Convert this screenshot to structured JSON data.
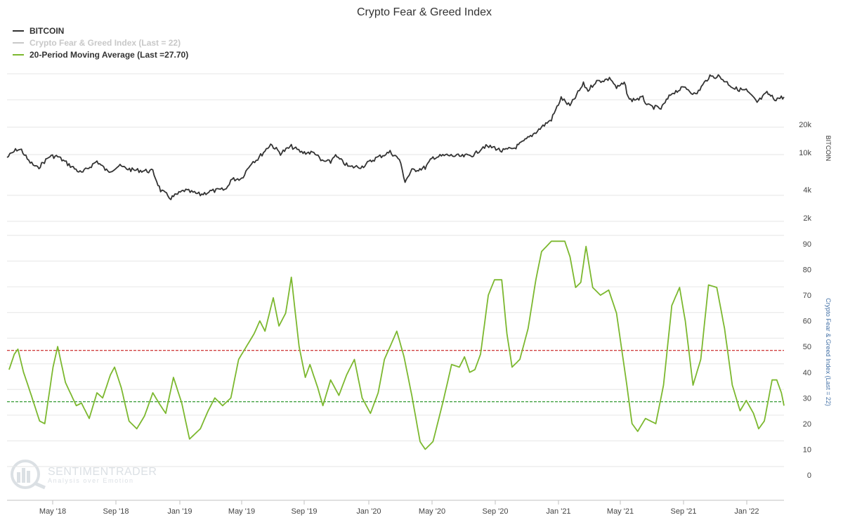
{
  "chart_data": {
    "type": "line",
    "title": "Crypto Fear & Greed Index",
    "legend": [
      {
        "label": "BITCOIN",
        "color": "#333333"
      },
      {
        "label": "Crypto Fear & Greed Index (Last = 22)",
        "color": "#c8c8c8"
      },
      {
        "label": "20-Period Moving Average (Last =27.70)",
        "color": "#7cb82f"
      }
    ],
    "x_ticks": [
      "May '18",
      "Sep '18",
      "Jan '19",
      "May '19",
      "Sep '19",
      "Jan '20",
      "May '20",
      "Sep '20",
      "Jan '21",
      "May '21",
      "Sep '21",
      "Jan '22"
    ],
    "x_range": [
      "2018-02-01",
      "2022-03-15"
    ],
    "upper_panel": {
      "axis_title": "BITCOIN",
      "scale": "log",
      "y_ticks": [
        {
          "label": "2k",
          "value": 2000
        },
        {
          "label": "4k",
          "value": 4000
        },
        {
          "label": "10k",
          "value": 10000
        },
        {
          "label": "20k",
          "value": 20000
        }
      ],
      "series": [
        {
          "name": "BITCOIN",
          "points": [
            [
              "2018-02-01",
              9000
            ],
            [
              "2018-02-20",
              11000
            ],
            [
              "2018-03-01",
              10800
            ],
            [
              "2018-03-15",
              8200
            ],
            [
              "2018-04-01",
              6900
            ],
            [
              "2018-04-25",
              9300
            ],
            [
              "2018-05-10",
              9200
            ],
            [
              "2018-06-01",
              7500
            ],
            [
              "2018-06-25",
              6100
            ],
            [
              "2018-07-25",
              8200
            ],
            [
              "2018-08-15",
              6300
            ],
            [
              "2018-09-05",
              7300
            ],
            [
              "2018-10-01",
              6600
            ],
            [
              "2018-11-10",
              6400
            ],
            [
              "2018-11-25",
              4000
            ],
            [
              "2018-12-15",
              3300
            ],
            [
              "2019-01-10",
              4000
            ],
            [
              "2019-02-10",
              3600
            ],
            [
              "2019-03-01",
              3900
            ],
            [
              "2019-04-01",
              4100
            ],
            [
              "2019-04-10",
              5200
            ],
            [
              "2019-05-01",
              5400
            ],
            [
              "2019-05-20",
              8000
            ],
            [
              "2019-06-01",
              8700
            ],
            [
              "2019-06-26",
              12500
            ],
            [
              "2019-07-15",
              10000
            ],
            [
              "2019-08-05",
              11800
            ],
            [
              "2019-08-25",
              10200
            ],
            [
              "2019-09-20",
              10100
            ],
            [
              "2019-10-01",
              8300
            ],
            [
              "2019-10-20",
              8000
            ],
            [
              "2019-10-27",
              9500
            ],
            [
              "2019-11-25",
              7100
            ],
            [
              "2019-12-20",
              7200
            ],
            [
              "2020-01-15",
              8800
            ],
            [
              "2020-02-12",
              10300
            ],
            [
              "2020-03-01",
              8600
            ],
            [
              "2020-03-12",
              5000
            ],
            [
              "2020-03-25",
              6500
            ],
            [
              "2020-04-20",
              7000
            ],
            [
              "2020-05-05",
              9000
            ],
            [
              "2020-06-01",
              9500
            ],
            [
              "2020-07-01",
              9200
            ],
            [
              "2020-07-25",
              9700
            ],
            [
              "2020-08-10",
              11800
            ],
            [
              "2020-09-01",
              11500
            ],
            [
              "2020-09-15",
              10500
            ],
            [
              "2020-10-10",
              11400
            ],
            [
              "2020-10-25",
              13000
            ],
            [
              "2020-11-15",
              16000
            ],
            [
              "2020-12-01",
              19000
            ],
            [
              "2020-12-20",
              23000
            ],
            [
              "2021-01-08",
              39000
            ],
            [
              "2021-01-25",
              32000
            ],
            [
              "2021-02-20",
              55000
            ],
            [
              "2021-03-01",
              47000
            ],
            [
              "2021-03-15",
              58000
            ],
            [
              "2021-04-14",
              63000
            ],
            [
              "2021-04-25",
              50000
            ],
            [
              "2021-05-10",
              56000
            ],
            [
              "2021-05-20",
              37000
            ],
            [
              "2021-06-15",
              39000
            ],
            [
              "2021-06-25",
              32000
            ],
            [
              "2021-07-20",
              30000
            ],
            [
              "2021-08-10",
              44000
            ],
            [
              "2021-09-05",
              51000
            ],
            [
              "2021-09-25",
              42000
            ],
            [
              "2021-10-20",
              65000
            ],
            [
              "2021-11-08",
              67000
            ],
            [
              "2021-11-25",
              57000
            ],
            [
              "2021-12-10",
              49000
            ],
            [
              "2022-01-01",
              47000
            ],
            [
              "2022-01-22",
              35000
            ],
            [
              "2022-02-10",
              44000
            ],
            [
              "2022-02-25",
              38000
            ],
            [
              "2022-03-15",
              40000
            ]
          ]
        }
      ]
    },
    "lower_panel": {
      "axis_title": "Crypto Fear & Greed Index (Last = 22)",
      "y_ticks": [
        0,
        10,
        20,
        30,
        40,
        50,
        60,
        70,
        80,
        90
      ],
      "reference_lines": [
        {
          "value": 48.5,
          "color": "#c00000",
          "style": "dashed"
        },
        {
          "value": 28.5,
          "color": "#008000",
          "style": "dashed"
        }
      ],
      "series": [
        {
          "name": "20-Period Moving Average (Last =27.70)",
          "points": [
            [
              "2018-02-05",
              41
            ],
            [
              "2018-02-15",
              47
            ],
            [
              "2018-02-22",
              49
            ],
            [
              "2018-03-05",
              40
            ],
            [
              "2018-03-20",
              31
            ],
            [
              "2018-04-05",
              21
            ],
            [
              "2018-04-15",
              20
            ],
            [
              "2018-05-01",
              42
            ],
            [
              "2018-05-10",
              50
            ],
            [
              "2018-05-25",
              36
            ],
            [
              "2018-06-15",
              27
            ],
            [
              "2018-06-25",
              28
            ],
            [
              "2018-07-10",
              22
            ],
            [
              "2018-07-25",
              32
            ],
            [
              "2018-08-05",
              30
            ],
            [
              "2018-08-20",
              39
            ],
            [
              "2018-08-28",
              42
            ],
            [
              "2018-09-10",
              34
            ],
            [
              "2018-09-25",
              21
            ],
            [
              "2018-10-10",
              18
            ],
            [
              "2018-10-25",
              23
            ],
            [
              "2018-11-10",
              32
            ],
            [
              "2018-11-25",
              27
            ],
            [
              "2018-12-05",
              24
            ],
            [
              "2018-12-20",
              38
            ],
            [
              "2019-01-05",
              28
            ],
            [
              "2019-01-20",
              14
            ],
            [
              "2019-02-10",
              18
            ],
            [
              "2019-02-25",
              25
            ],
            [
              "2019-03-10",
              30
            ],
            [
              "2019-03-25",
              27
            ],
            [
              "2019-04-10",
              30
            ],
            [
              "2019-04-25",
              45
            ],
            [
              "2019-05-10",
              50
            ],
            [
              "2019-05-25",
              55
            ],
            [
              "2019-06-05",
              60
            ],
            [
              "2019-06-15",
              56
            ],
            [
              "2019-07-01",
              69
            ],
            [
              "2019-07-12",
              58
            ],
            [
              "2019-07-25",
              63
            ],
            [
              "2019-08-05",
              77
            ],
            [
              "2019-08-20",
              50
            ],
            [
              "2019-09-01",
              38
            ],
            [
              "2019-09-10",
              43
            ],
            [
              "2019-09-25",
              34
            ],
            [
              "2019-10-05",
              27
            ],
            [
              "2019-10-20",
              37
            ],
            [
              "2019-11-05",
              31
            ],
            [
              "2019-11-20",
              39
            ],
            [
              "2019-12-05",
              45
            ],
            [
              "2019-12-20",
              30
            ],
            [
              "2020-01-05",
              24
            ],
            [
              "2020-01-20",
              32
            ],
            [
              "2020-02-01",
              45
            ],
            [
              "2020-02-12",
              50
            ],
            [
              "2020-02-25",
              56
            ],
            [
              "2020-03-10",
              46
            ],
            [
              "2020-03-25",
              31
            ],
            [
              "2020-04-10",
              13
            ],
            [
              "2020-04-20",
              10
            ],
            [
              "2020-05-05",
              13
            ],
            [
              "2020-05-25",
              29
            ],
            [
              "2020-06-10",
              43
            ],
            [
              "2020-06-25",
              42
            ],
            [
              "2020-07-05",
              46
            ],
            [
              "2020-07-15",
              40
            ],
            [
              "2020-07-25",
              41
            ],
            [
              "2020-08-05",
              47
            ],
            [
              "2020-08-20",
              70
            ],
            [
              "2020-09-01",
              76
            ],
            [
              "2020-09-15",
              76
            ],
            [
              "2020-09-25",
              55
            ],
            [
              "2020-10-05",
              42
            ],
            [
              "2020-10-20",
              45
            ],
            [
              "2020-11-05",
              57
            ],
            [
              "2020-11-20",
              76
            ],
            [
              "2020-12-01",
              87
            ],
            [
              "2020-12-20",
              91
            ],
            [
              "2021-01-05",
              91
            ],
            [
              "2021-01-15",
              91
            ],
            [
              "2021-01-25",
              85
            ],
            [
              "2021-02-05",
              73
            ],
            [
              "2021-02-15",
              75
            ],
            [
              "2021-02-25",
              89
            ],
            [
              "2021-03-10",
              73
            ],
            [
              "2021-03-25",
              70
            ],
            [
              "2021-04-10",
              72
            ],
            [
              "2021-04-25",
              63
            ],
            [
              "2021-05-15",
              35
            ],
            [
              "2021-05-25",
              20
            ],
            [
              "2021-06-05",
              17
            ],
            [
              "2021-06-20",
              22
            ],
            [
              "2021-07-10",
              20
            ],
            [
              "2021-07-25",
              35
            ],
            [
              "2021-08-10",
              66
            ],
            [
              "2021-08-25",
              73
            ],
            [
              "2021-09-05",
              60
            ],
            [
              "2021-09-20",
              35
            ],
            [
              "2021-10-05",
              45
            ],
            [
              "2021-10-20",
              74
            ],
            [
              "2021-11-05",
              73
            ],
            [
              "2021-11-20",
              57
            ],
            [
              "2021-12-05",
              35
            ],
            [
              "2021-12-20",
              25
            ],
            [
              "2022-01-01",
              29
            ],
            [
              "2022-01-15",
              24
            ],
            [
              "2022-01-25",
              18
            ],
            [
              "2022-02-05",
              21
            ],
            [
              "2022-02-20",
              37
            ],
            [
              "2022-03-01",
              37
            ],
            [
              "2022-03-10",
              32
            ],
            [
              "2022-03-15",
              27
            ]
          ]
        }
      ]
    }
  },
  "watermark": {
    "brand": "SENTIMENTRADER",
    "tagline": "Analysis over Emotion"
  },
  "colors": {
    "bitcoin": "#333333",
    "fgi": "#c8c8c8",
    "ma": "#7cb82f",
    "bearish_line": "#c00000",
    "bullish_line": "#008000",
    "grid": "#e6e6e6",
    "right_axis_title": "#4572a7"
  }
}
